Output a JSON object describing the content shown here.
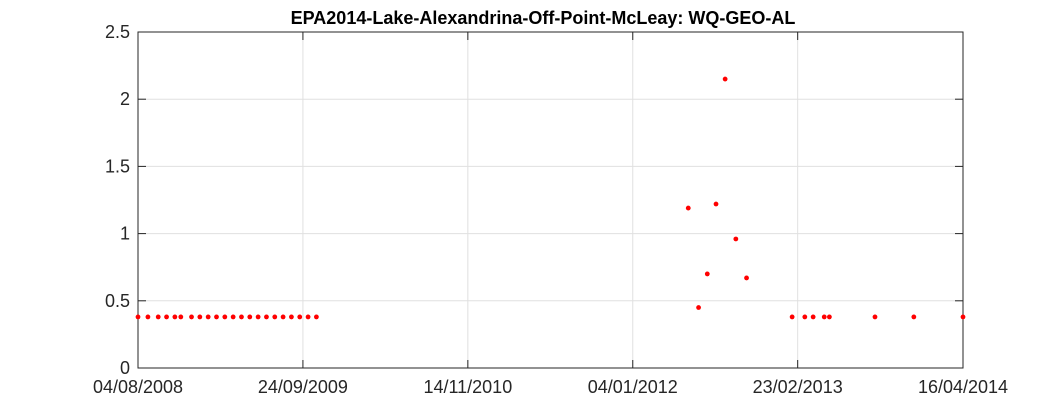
{
  "chart_data": {
    "type": "scatter",
    "title": "EPA2014-Lake-Alexandrina-Off-Point-McLeay: WQ-GEO-AL",
    "xlabel": "",
    "ylabel": "",
    "x_axis": "date",
    "xlim": [
      "2008-08-04",
      "2014-04-16"
    ],
    "ylim": [
      0,
      2.5
    ],
    "xticks": [
      "2008-08-04",
      "2009-09-24",
      "2010-11-14",
      "2012-01-04",
      "2013-02-23",
      "2014-04-16"
    ],
    "xtick_labels": [
      "04/08/2008",
      "24/09/2009",
      "14/11/2010",
      "04/01/2012",
      "23/02/2013",
      "16/04/2014"
    ],
    "yticks": [
      0,
      0.5,
      1,
      1.5,
      2,
      2.5
    ],
    "ytick_labels": [
      "0",
      "0.5",
      "1",
      "1.5",
      "2",
      "2.5"
    ],
    "grid": true,
    "marker_color": "#ff0000",
    "series": [
      {
        "name": "",
        "points": [
          {
            "x": "2008-08-04",
            "y": 0.38
          },
          {
            "x": "2008-08-29",
            "y": 0.38
          },
          {
            "x": "2008-09-24",
            "y": 0.38
          },
          {
            "x": "2008-10-15",
            "y": 0.38
          },
          {
            "x": "2008-11-05",
            "y": 0.38
          },
          {
            "x": "2008-11-20",
            "y": 0.38
          },
          {
            "x": "2008-12-17",
            "y": 0.38
          },
          {
            "x": "2009-01-07",
            "y": 0.38
          },
          {
            "x": "2009-01-28",
            "y": 0.38
          },
          {
            "x": "2009-02-18",
            "y": 0.38
          },
          {
            "x": "2009-03-11",
            "y": 0.38
          },
          {
            "x": "2009-04-01",
            "y": 0.38
          },
          {
            "x": "2009-04-22",
            "y": 0.38
          },
          {
            "x": "2009-05-13",
            "y": 0.38
          },
          {
            "x": "2009-06-03",
            "y": 0.38
          },
          {
            "x": "2009-06-24",
            "y": 0.38
          },
          {
            "x": "2009-07-15",
            "y": 0.38
          },
          {
            "x": "2009-08-05",
            "y": 0.38
          },
          {
            "x": "2009-08-26",
            "y": 0.38
          },
          {
            "x": "2009-09-16",
            "y": 0.38
          },
          {
            "x": "2009-10-07",
            "y": 0.38
          },
          {
            "x": "2009-10-28",
            "y": 0.38
          },
          {
            "x": "2012-05-23",
            "y": 1.19
          },
          {
            "x": "2012-06-18",
            "y": 0.45
          },
          {
            "x": "2012-07-10",
            "y": 0.7
          },
          {
            "x": "2012-08-01",
            "y": 1.22
          },
          {
            "x": "2012-08-24",
            "y": 2.15
          },
          {
            "x": "2012-09-20",
            "y": 0.96
          },
          {
            "x": "2012-10-17",
            "y": 0.67
          },
          {
            "x": "2013-02-09",
            "y": 0.38
          },
          {
            "x": "2013-03-13",
            "y": 0.38
          },
          {
            "x": "2013-04-03",
            "y": 0.38
          },
          {
            "x": "2013-05-01",
            "y": 0.38
          },
          {
            "x": "2013-05-14",
            "y": 0.38
          },
          {
            "x": "2013-09-06",
            "y": 0.38
          },
          {
            "x": "2013-12-13",
            "y": 0.38
          },
          {
            "x": "2014-04-16",
            "y": 0.38
          }
        ]
      }
    ]
  }
}
